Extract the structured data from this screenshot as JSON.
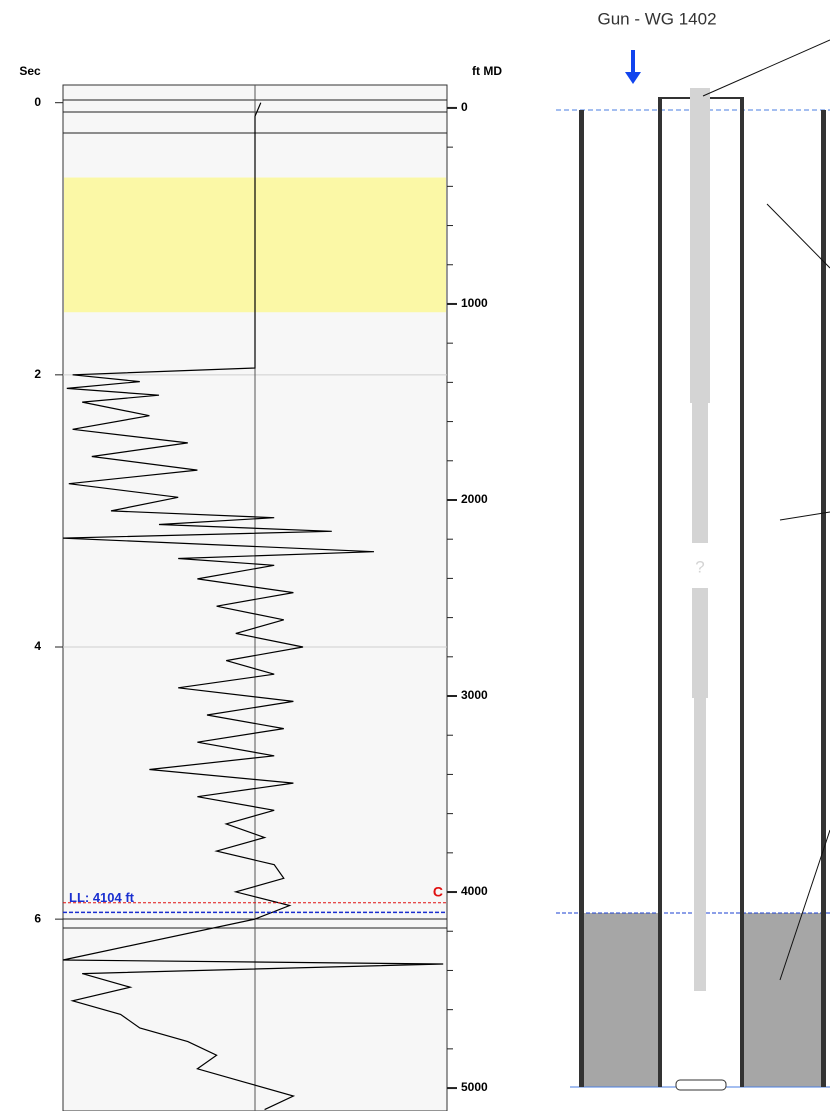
{
  "trace_panel": {
    "left_axis": {
      "label": "Sec",
      "lim": [
        -0.13,
        7.41
      ],
      "ticks": [
        0,
        2,
        4,
        6
      ]
    },
    "right_axis": {
      "label": "ft MD",
      "lim": [
        -117,
        5117
      ],
      "ticks": [
        0,
        1000,
        2000,
        3000,
        4000,
        5000
      ],
      "minor_ticks": [
        200,
        400,
        600,
        800,
        1200,
        1400,
        1600,
        1800,
        2200,
        2400,
        2600,
        2800,
        3200,
        3400,
        3600,
        3800,
        4200,
        4400,
        4600,
        4800
      ]
    },
    "amplitude_lim": [
      -1,
      1
    ],
    "highlight_sec": [
      0.55,
      1.54
    ],
    "grid_sec": [
      2,
      4
    ],
    "collar_sec": 5.88,
    "collar_marker": "C",
    "liquid_level_ft": 4104,
    "liquid_level_label": "LL: 4104 ft",
    "trace": {
      "time": [
        0,
        0.1,
        1.95,
        2.0,
        2.05,
        2.1,
        2.15,
        2.2,
        2.3,
        2.4,
        2.5,
        2.6,
        2.7,
        2.8,
        2.9,
        3.0,
        3.05,
        3.1,
        3.15,
        3.2,
        3.3,
        3.35,
        3.4,
        3.5,
        3.6,
        3.7,
        3.8,
        3.9,
        4.0,
        4.1,
        4.2,
        4.3,
        4.4,
        4.5,
        4.6,
        4.7,
        4.8,
        4.9,
        5.0,
        5.1,
        5.2,
        5.3,
        5.4,
        5.5,
        5.6,
        5.7,
        5.8,
        5.9,
        6.0,
        6.3,
        6.33,
        6.4,
        6.5,
        6.6,
        6.7,
        6.8,
        6.9,
        7.0,
        7.1,
        7.2,
        7.3,
        7.4
      ],
      "amplitude": [
        0.03,
        0,
        0,
        -0.95,
        -0.6,
        -0.98,
        -0.5,
        -0.9,
        -0.55,
        -0.95,
        -0.35,
        -0.85,
        -0.3,
        -0.97,
        -0.4,
        -0.75,
        0.1,
        -0.5,
        0.4,
        -1.0,
        0.62,
        -0.4,
        0.1,
        -0.3,
        0.2,
        -0.2,
        0.15,
        -0.1,
        0.25,
        -0.15,
        0.1,
        -0.4,
        0.2,
        -0.25,
        0.15,
        -0.3,
        0.1,
        -0.55,
        0.2,
        -0.3,
        0.1,
        -0.15,
        0.05,
        -0.2,
        0.1,
        0.15,
        -0.1,
        0.18,
        0,
        -1.0,
        0.98,
        -0.9,
        -0.65,
        -0.95,
        -0.7,
        -0.6,
        -0.35,
        -0.2,
        -0.3,
        -0.05,
        0.2,
        0.05
      ]
    }
  },
  "wellbore": {
    "gun_label": "Gun - WG 1402",
    "unknown_label": "?"
  }
}
